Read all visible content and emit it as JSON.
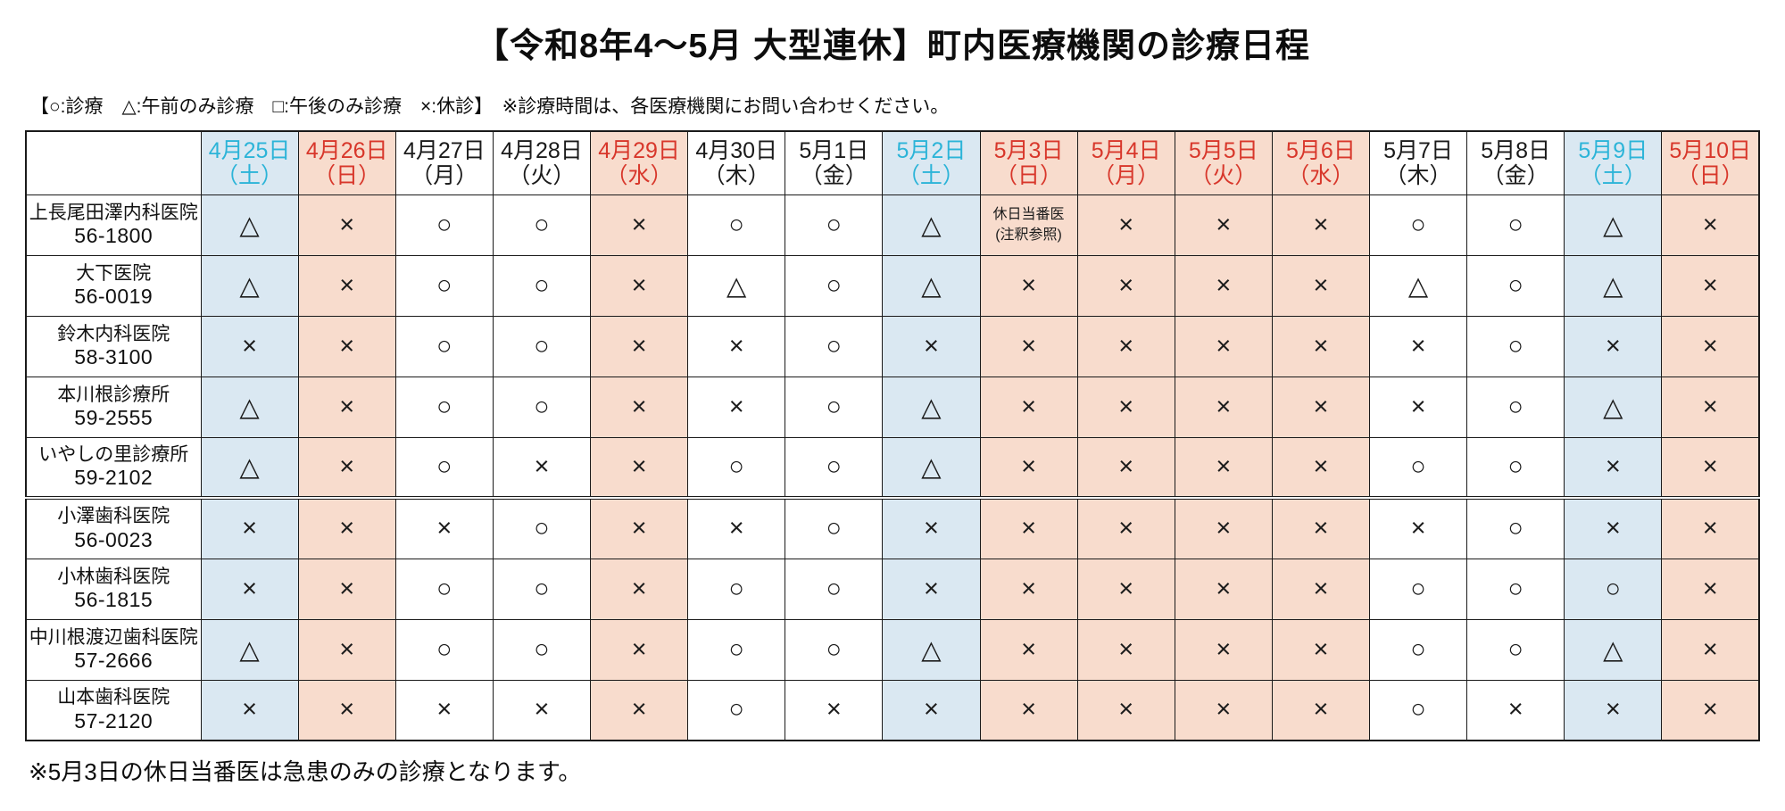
{
  "title": "【令和8年4～5月 大型連休】町内医療機関の診療日程",
  "legend": "【○:診療　△:午前のみ診療　□:午後のみ診療　×:休診】　※診療時間は、各医療機関にお問い合わせください。",
  "footnote": "※5月3日の休日当番医は急患のみの診療となります。",
  "colors": {
    "saturday_bg": "#dae8f2",
    "saturday_text": "#2cb4d8",
    "holiday_bg": "#f8dccd",
    "holiday_text": "#d8372b",
    "weekday_text": "#1a1a1a",
    "border": "#1a1a1a"
  },
  "symbols_legend": {
    "circle": "診療",
    "triangle": "午前のみ診療",
    "square": "午後のみ診療",
    "cross": "休診"
  },
  "table": {
    "columns": [
      {
        "date": "4月25日",
        "dow": "（土）",
        "type": "sat"
      },
      {
        "date": "4月26日",
        "dow": "（日）",
        "type": "hol"
      },
      {
        "date": "4月27日",
        "dow": "（月）",
        "type": "wk"
      },
      {
        "date": "4月28日",
        "dow": "（火）",
        "type": "wk"
      },
      {
        "date": "4月29日",
        "dow": "（水）",
        "type": "hol"
      },
      {
        "date": "4月30日",
        "dow": "（木）",
        "type": "wk"
      },
      {
        "date": "5月1日",
        "dow": "（金）",
        "type": "wk"
      },
      {
        "date": "5月2日",
        "dow": "（土）",
        "type": "sat"
      },
      {
        "date": "5月3日",
        "dow": "（日）",
        "type": "hol"
      },
      {
        "date": "5月4日",
        "dow": "（月）",
        "type": "hol"
      },
      {
        "date": "5月5日",
        "dow": "（火）",
        "type": "hol"
      },
      {
        "date": "5月6日",
        "dow": "（水）",
        "type": "hol"
      },
      {
        "date": "5月7日",
        "dow": "（木）",
        "type": "wk"
      },
      {
        "date": "5月8日",
        "dow": "（金）",
        "type": "wk"
      },
      {
        "date": "5月9日",
        "dow": "（土）",
        "type": "sat"
      },
      {
        "date": "5月10日",
        "dow": "（日）",
        "type": "hol"
      }
    ],
    "rows": [
      {
        "name": "上長尾田澤内科医院",
        "phone": "56-1800",
        "group_start": false,
        "cells": [
          "△",
          "×",
          "○",
          "○",
          "×",
          "○",
          "○",
          "△",
          {
            "lines": [
              "休日当番医",
              "(注釈参照)"
            ]
          },
          "×",
          "×",
          "×",
          "○",
          "○",
          "△",
          "×"
        ]
      },
      {
        "name": "大下医院",
        "phone": "56-0019",
        "group_start": false,
        "cells": [
          "△",
          "×",
          "○",
          "○",
          "×",
          "△",
          "○",
          "△",
          "×",
          "×",
          "×",
          "×",
          "△",
          "○",
          "△",
          "×"
        ]
      },
      {
        "name": "鈴木内科医院",
        "phone": "58-3100",
        "group_start": false,
        "cells": [
          "×",
          "×",
          "○",
          "○",
          "×",
          "×",
          "○",
          "×",
          "×",
          "×",
          "×",
          "×",
          "×",
          "○",
          "×",
          "×"
        ]
      },
      {
        "name": "本川根診療所",
        "phone": "59-2555",
        "group_start": false,
        "cells": [
          "△",
          "×",
          "○",
          "○",
          "×",
          "×",
          "○",
          "△",
          "×",
          "×",
          "×",
          "×",
          "×",
          "○",
          "△",
          "×"
        ]
      },
      {
        "name": "いやしの里診療所",
        "phone": "59-2102",
        "group_start": false,
        "cells": [
          "△",
          "×",
          "○",
          "×",
          "×",
          "○",
          "○",
          "△",
          "×",
          "×",
          "×",
          "×",
          "○",
          "○",
          "×",
          "×"
        ]
      },
      {
        "name": "小澤歯科医院",
        "phone": "56-0023",
        "group_start": true,
        "cells": [
          "×",
          "×",
          "×",
          "○",
          "×",
          "×",
          "○",
          "×",
          "×",
          "×",
          "×",
          "×",
          "×",
          "○",
          "×",
          "×"
        ]
      },
      {
        "name": "小林歯科医院",
        "phone": "56-1815",
        "group_start": false,
        "cells": [
          "×",
          "×",
          "○",
          "○",
          "×",
          "○",
          "○",
          "×",
          "×",
          "×",
          "×",
          "×",
          "○",
          "○",
          "○",
          "×"
        ]
      },
      {
        "name": "中川根渡辺歯科医院",
        "phone": "57-2666",
        "group_start": false,
        "cells": [
          "△",
          "×",
          "○",
          "○",
          "×",
          "○",
          "○",
          "△",
          "×",
          "×",
          "×",
          "×",
          "○",
          "○",
          "△",
          "×"
        ]
      },
      {
        "name": "山本歯科医院",
        "phone": "57-2120",
        "group_start": false,
        "cells": [
          "×",
          "×",
          "×",
          "×",
          "×",
          "○",
          "×",
          "×",
          "×",
          "×",
          "×",
          "×",
          "○",
          "×",
          "×",
          "×"
        ]
      }
    ]
  }
}
